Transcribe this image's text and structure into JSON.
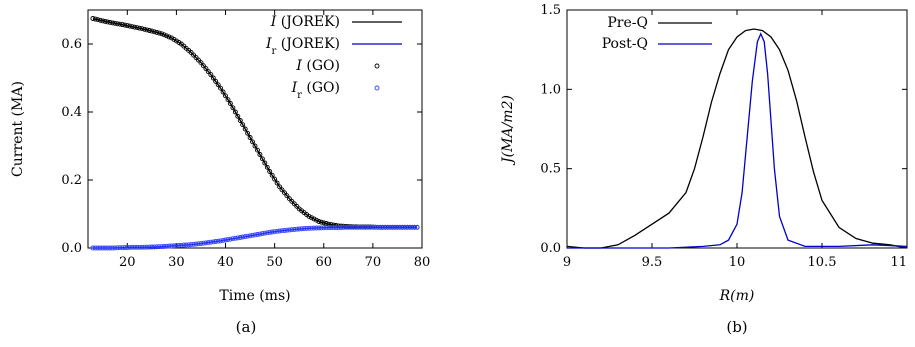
{
  "captions": {
    "a": "(a)",
    "b": "(b)"
  },
  "chart_data": [
    {
      "type": "line",
      "panel": "a",
      "xlabel": "Time (ms)",
      "ylabel": "Current (MA)",
      "xlim": [
        12,
        80
      ],
      "ylim": [
        0,
        0.7
      ],
      "xticks": [
        20,
        30,
        40,
        50,
        60,
        70,
        80
      ],
      "yticks": [
        0.0,
        0.2,
        0.4,
        0.6
      ],
      "ytick_labels": [
        "0.0",
        "0.2",
        "0.4",
        "0.6"
      ],
      "grid": false,
      "legend_position": "top-right",
      "x": [
        13,
        15,
        17,
        19,
        21,
        23,
        25,
        27,
        29,
        31,
        33,
        35,
        37,
        39,
        41,
        43,
        45,
        47,
        49,
        51,
        53,
        55,
        57,
        59,
        61,
        63,
        65,
        67,
        69,
        71,
        73,
        75,
        77,
        79
      ],
      "series": [
        {
          "name": "I (JOREK)",
          "name_main": "I",
          "name_sub": "",
          "name_rest": " (JOREK)",
          "style": "line",
          "color": "#000000",
          "values": [
            0.675,
            0.668,
            0.662,
            0.657,
            0.651,
            0.645,
            0.638,
            0.63,
            0.618,
            0.6,
            0.575,
            0.545,
            0.51,
            0.47,
            0.425,
            0.375,
            0.325,
            0.275,
            0.225,
            0.18,
            0.145,
            0.115,
            0.093,
            0.078,
            0.07,
            0.065,
            0.063,
            0.062,
            0.062,
            0.061,
            0.061,
            0.061,
            0.061,
            0.061
          ]
        },
        {
          "name": "Ir (JOREK)",
          "name_main": "I",
          "name_sub": "r",
          "name_rest": " (JOREK)",
          "style": "line",
          "color": "#0000cc",
          "values": [
            0.0,
            0.0,
            0.0,
            0.001,
            0.002,
            0.002,
            0.003,
            0.004,
            0.006,
            0.008,
            0.01,
            0.013,
            0.017,
            0.021,
            0.026,
            0.031,
            0.036,
            0.041,
            0.046,
            0.05,
            0.053,
            0.056,
            0.058,
            0.059,
            0.06,
            0.06,
            0.061,
            0.061,
            0.061,
            0.061,
            0.061,
            0.061,
            0.061,
            0.061
          ]
        },
        {
          "name": "I (GO)",
          "name_main": "I",
          "name_sub": "",
          "name_rest": " (GO)",
          "style": "markers",
          "color": "#000000",
          "values": [
            0.675,
            0.668,
            0.662,
            0.657,
            0.651,
            0.645,
            0.638,
            0.63,
            0.618,
            0.6,
            0.575,
            0.545,
            0.51,
            0.47,
            0.425,
            0.375,
            0.325,
            0.275,
            0.225,
            0.18,
            0.145,
            0.115,
            0.093,
            0.078,
            0.07,
            0.065,
            0.063,
            0.062,
            0.062,
            0.061,
            0.061,
            0.061,
            0.061,
            0.061
          ]
        },
        {
          "name": "Ir (GO)",
          "name_main": "I",
          "name_sub": "r",
          "name_rest": " (GO)",
          "style": "markers",
          "color": "#3344ff",
          "values": [
            0.0,
            0.0,
            0.0,
            0.001,
            0.002,
            0.002,
            0.003,
            0.004,
            0.006,
            0.008,
            0.01,
            0.013,
            0.017,
            0.021,
            0.026,
            0.031,
            0.036,
            0.041,
            0.046,
            0.05,
            0.053,
            0.056,
            0.058,
            0.059,
            0.06,
            0.06,
            0.061,
            0.061,
            0.061,
            0.061,
            0.061,
            0.061,
            0.061,
            0.061
          ]
        }
      ]
    },
    {
      "type": "line",
      "panel": "b",
      "xlabel": "R(m)",
      "ylabel": "J(MA/m2)",
      "xlim": [
        9,
        11
      ],
      "ylim": [
        0,
        1.5
      ],
      "xticks": [
        9,
        9.5,
        10,
        10.5,
        11
      ],
      "xtick_labels": [
        "9",
        "9.5",
        "10",
        "10.5",
        "11"
      ],
      "yticks": [
        0.0,
        0.5,
        1.0,
        1.5
      ],
      "ytick_labels": [
        "0.0",
        "0.5",
        "1.0",
        "1.5"
      ],
      "grid": false,
      "legend_position": "top-left",
      "series": [
        {
          "name": "Pre-Q",
          "color": "#000000",
          "x": [
            9.0,
            9.1,
            9.2,
            9.3,
            9.4,
            9.5,
            9.6,
            9.7,
            9.75,
            9.8,
            9.85,
            9.9,
            9.95,
            10.0,
            10.05,
            10.1,
            10.15,
            10.2,
            10.25,
            10.3,
            10.35,
            10.4,
            10.45,
            10.5,
            10.6,
            10.7,
            10.8,
            10.9,
            11.0
          ],
          "y": [
            0.01,
            0.0,
            0.0,
            0.02,
            0.08,
            0.15,
            0.22,
            0.35,
            0.5,
            0.7,
            0.92,
            1.1,
            1.25,
            1.33,
            1.37,
            1.38,
            1.37,
            1.33,
            1.25,
            1.12,
            0.93,
            0.7,
            0.48,
            0.3,
            0.13,
            0.06,
            0.03,
            0.02,
            0.0
          ]
        },
        {
          "name": "Post-Q",
          "color": "#0000cc",
          "x": [
            9.0,
            9.2,
            9.4,
            9.6,
            9.8,
            9.9,
            9.95,
            10.0,
            10.03,
            10.06,
            10.09,
            10.12,
            10.14,
            10.16,
            10.18,
            10.2,
            10.22,
            10.25,
            10.3,
            10.4,
            10.6,
            10.8,
            11.0
          ],
          "y": [
            0.0,
            0.0,
            0.0,
            0.0,
            0.01,
            0.02,
            0.05,
            0.15,
            0.35,
            0.7,
            1.05,
            1.3,
            1.35,
            1.3,
            1.1,
            0.8,
            0.5,
            0.2,
            0.05,
            0.01,
            0.01,
            0.02,
            0.01
          ]
        }
      ]
    }
  ]
}
